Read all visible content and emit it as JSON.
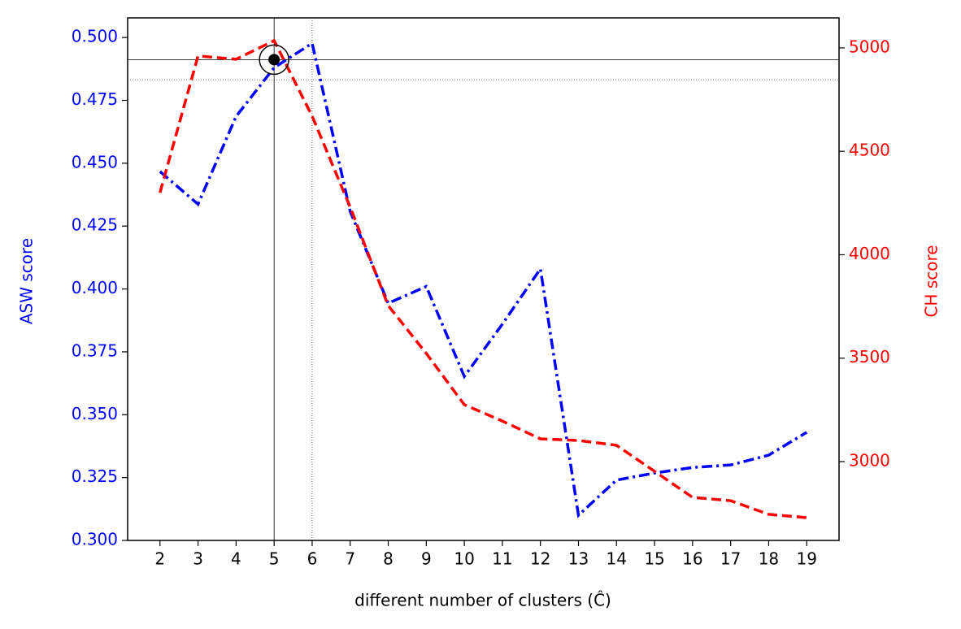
{
  "chart_data": {
    "type": "line",
    "x_label": "different number of clusters (Ĉ)",
    "y_label": "ASW score",
    "y2_label": "CH score",
    "x": [
      2,
      3,
      4,
      5,
      6,
      7,
      8,
      9,
      10,
      11,
      12,
      13,
      14,
      15,
      16,
      17,
      18,
      19
    ],
    "xlim": [
      1.15,
      19.85
    ],
    "xticks": [
      2,
      3,
      4,
      5,
      6,
      7,
      8,
      9,
      10,
      11,
      12,
      13,
      14,
      15,
      16,
      17,
      18,
      19
    ],
    "ylim": [
      0.3,
      0.5078
    ],
    "yticks": [
      {
        "value": 0.3,
        "label": "0.300"
      },
      0.325,
      {
        "value": 0.35,
        "label": "0.350"
      },
      0.375,
      {
        "value": 0.4,
        "label": "0.400"
      },
      0.425,
      {
        "value": 0.45,
        "label": "0.450"
      },
      0.475,
      {
        "value": 0.5,
        "label": "0.500"
      }
    ],
    "y2lim": [
      2619,
      5145
    ],
    "y2ticks": [
      3000,
      3500,
      4000,
      4500,
      5000
    ],
    "series": [
      {
        "name": "ASW score",
        "color": "#0000ff",
        "axis": "y",
        "style": "dashdot",
        "values": [
          0.4467,
          0.4337,
          0.4686,
          0.488,
          0.4977,
          0.4308,
          0.3943,
          0.401,
          0.3652,
          0.386,
          0.408,
          0.31,
          0.324,
          0.3268,
          0.329,
          0.33,
          0.3339,
          0.343
        ]
      },
      {
        "name": "CH score",
        "color": "#ff0000",
        "axis": "y2",
        "style": "dashed",
        "values": [
          4300,
          4961,
          4945,
          5035,
          4670,
          4230,
          3754,
          3523,
          3275,
          3196,
          3110,
          3102,
          3079,
          2953,
          2827,
          2811,
          2745,
          2729
        ]
      }
    ],
    "hlines": [
      {
        "value": 0.4912,
        "style": "solid"
      },
      {
        "value": 0.4832,
        "style": "dotted"
      }
    ],
    "vlines": [
      {
        "value": 5,
        "style": "solid"
      },
      {
        "value": 6,
        "style": "dotted"
      }
    ],
    "marker": {
      "x": 5,
      "y": 0.4912
    }
  }
}
